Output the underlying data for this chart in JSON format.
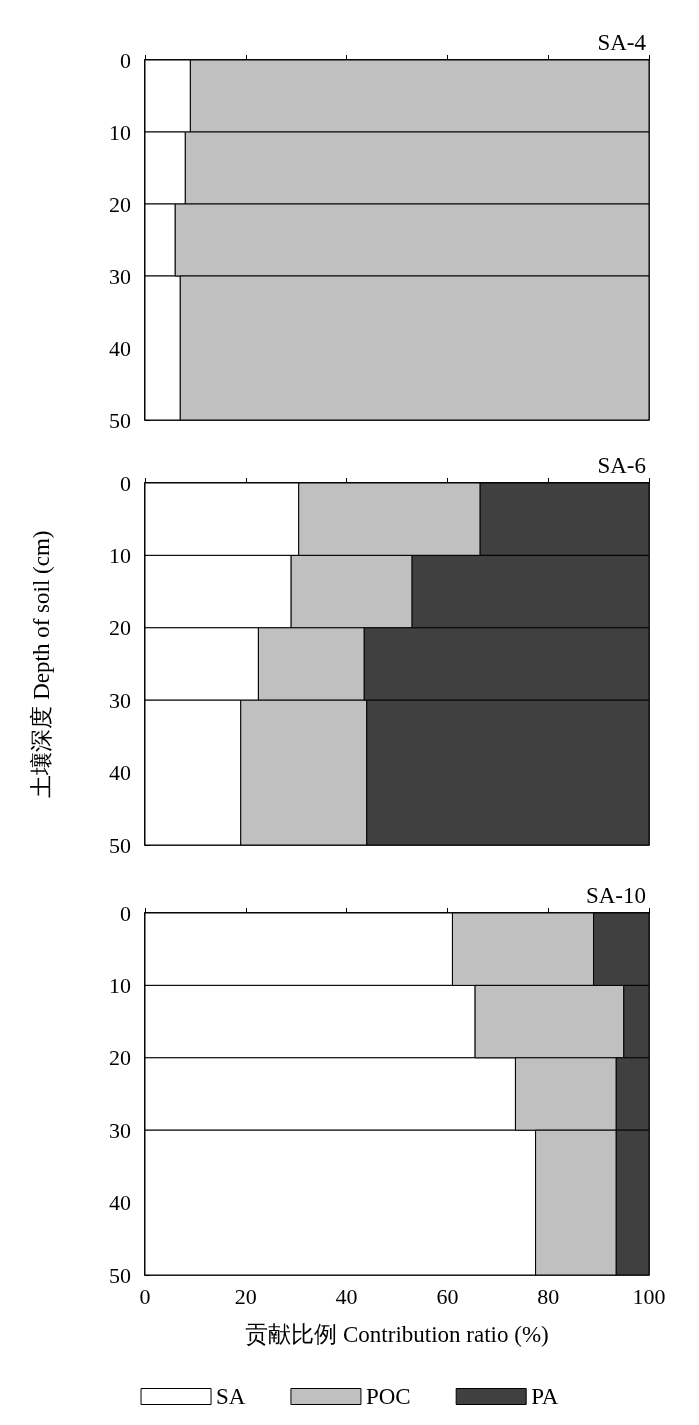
{
  "chart_data": [
    {
      "type": "bar",
      "title": "SA-4",
      "orientation": "horizontal",
      "stacked": true,
      "x": [
        5,
        15,
        25,
        40
      ],
      "ylim": [
        50,
        0
      ],
      "yticks": [
        0,
        10,
        20,
        30,
        40,
        50
      ],
      "xlim": [
        0,
        100
      ],
      "xticks": [
        0,
        20,
        40,
        60,
        80,
        100
      ],
      "tick_labels": "y",
      "legend": false,
      "series": [
        {
          "color": "#ffffff",
          "values": [
            9,
            8,
            6,
            7
          ]
        },
        {
          "color": "#c0c0c0",
          "values": [
            91,
            92,
            94,
            93
          ]
        }
      ]
    },
    {
      "type": "bar",
      "title": "SA-6",
      "ylabel": "土壤深度 Depth of soil (cm)",
      "orientation": "horizontal",
      "stacked": true,
      "x": [
        5,
        15,
        25,
        40
      ],
      "ylim": [
        50,
        0
      ],
      "yticks": [
        0,
        10,
        20,
        30,
        40,
        50
      ],
      "xlim": [
        0,
        100
      ],
      "xticks": [
        0,
        20,
        40,
        60,
        80,
        100
      ],
      "tick_labels": "y",
      "legend": false,
      "series": [
        {
          "color": "#ffffff",
          "values": [
            30.5,
            29,
            22.5,
            19
          ]
        },
        {
          "color": "#c0c0c0",
          "values": [
            36,
            24,
            21,
            25
          ]
        },
        {
          "color": "#404040",
          "values": [
            33.5,
            47,
            56.5,
            56
          ]
        }
      ]
    },
    {
      "type": "bar",
      "title": "SA-10",
      "xlabel": "贡献比例 Contribution ratio (%)",
      "orientation": "horizontal",
      "stacked": true,
      "x": [
        5,
        15,
        25,
        40
      ],
      "ylim": [
        50,
        0
      ],
      "yticks": [
        0,
        10,
        20,
        30,
        40,
        50
      ],
      "xlim": [
        0,
        100
      ],
      "xticks": [
        0,
        20,
        40,
        60,
        80,
        100
      ],
      "legend": "bottom",
      "series": [
        {
          "name": "SA",
          "color": "#ffffff",
          "values": [
            61,
            65.5,
            73.5,
            77.5
          ]
        },
        {
          "name": "POC",
          "color": "#c0c0c0",
          "values": [
            28,
            29.5,
            20,
            16
          ]
        },
        {
          "name": "PA",
          "color": "#404040",
          "values": [
            11,
            5,
            6.5,
            6.5
          ]
        }
      ]
    }
  ]
}
